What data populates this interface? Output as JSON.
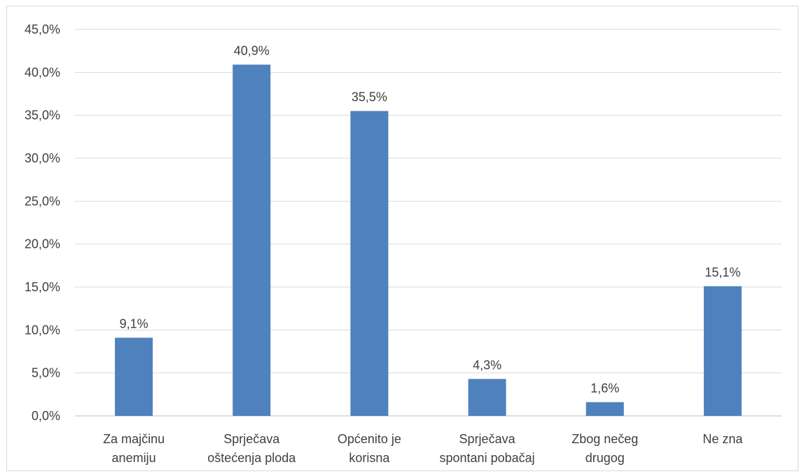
{
  "chart_data": {
    "type": "bar",
    "categories": [
      [
        "Za majčinu",
        "anemiju"
      ],
      [
        "Sprječava",
        "oštećenja ploda"
      ],
      [
        "Općenito je",
        "korisna"
      ],
      [
        "Sprječava",
        "spontani pobačaj"
      ],
      [
        "Zbog nečeg",
        "drugog"
      ],
      [
        "Ne zna"
      ]
    ],
    "values": [
      9.1,
      40.9,
      35.5,
      4.3,
      1.6,
      15.1
    ],
    "data_labels": [
      "9,1%",
      "40,9%",
      "35,5%",
      "4,3%",
      "1,6%",
      "15,1%"
    ],
    "y_ticks": [
      "0,0%",
      "5,0%",
      "10,0%",
      "15,0%",
      "20,0%",
      "25,0%",
      "30,0%",
      "35,0%",
      "40,0%",
      "45,0%"
    ],
    "ylim": [
      0,
      45
    ],
    "grid": true,
    "bar_color": "#4f81bd",
    "grid_color": "#d9d9d9"
  }
}
